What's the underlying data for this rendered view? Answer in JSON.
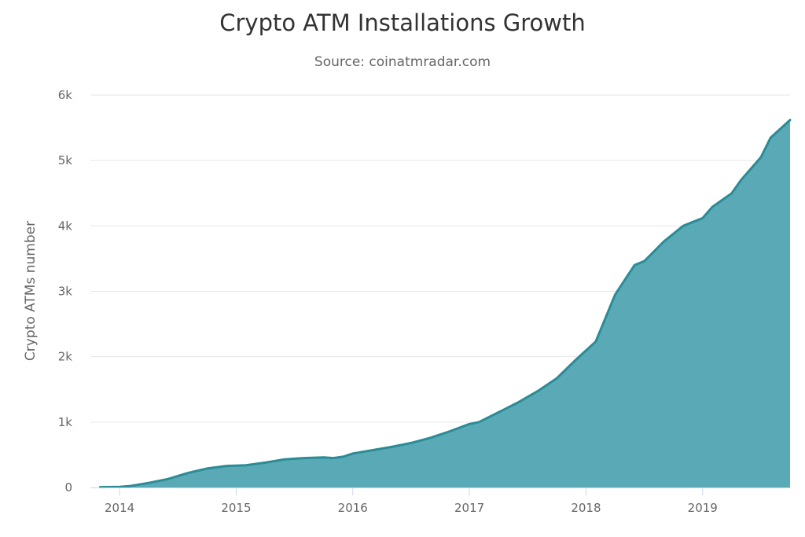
{
  "chart_data": {
    "type": "area",
    "title": "Crypto ATM Installations Growth",
    "subtitle": "Source: coinatmradar.com",
    "xlabel": "",
    "ylabel": "Crypto ATMs number",
    "ylim": [
      0,
      6000
    ],
    "xlim": [
      "2013-10",
      "2019-10"
    ],
    "yticks": [
      {
        "value": 0,
        "label": "0"
      },
      {
        "value": 1000,
        "label": "1k"
      },
      {
        "value": 2000,
        "label": "2k"
      },
      {
        "value": 3000,
        "label": "3k"
      },
      {
        "value": 4000,
        "label": "4k"
      },
      {
        "value": 5000,
        "label": "5k"
      },
      {
        "value": 6000,
        "label": "6k"
      }
    ],
    "xticks": [
      {
        "value": "2014-01",
        "label": "2014"
      },
      {
        "value": "2015-01",
        "label": "2015"
      },
      {
        "value": "2016-01",
        "label": "2016"
      },
      {
        "value": "2017-01",
        "label": "2017"
      },
      {
        "value": "2018-01",
        "label": "2018"
      },
      {
        "value": "2019-01",
        "label": "2019"
      }
    ],
    "grid": true,
    "legend": "none",
    "colors": {
      "fill": "#5aa9b6",
      "line": "#2b8c96",
      "grid": "#e6e6e6",
      "axis": "#ccd6eb"
    },
    "series": [
      {
        "x": [
          "2013-11",
          "2014-01",
          "2014-02",
          "2014-04",
          "2014-06",
          "2014-08",
          "2014-10",
          "2014-12",
          "2015-02",
          "2015-04",
          "2015-06",
          "2015-08",
          "2015-10",
          "2015-11",
          "2015-12",
          "2016-01",
          "2016-03",
          "2016-05",
          "2016-07",
          "2016-09",
          "2016-11",
          "2017-01",
          "2017-02",
          "2017-04",
          "2017-06",
          "2017-08",
          "2017-10",
          "2017-12",
          "2018-02",
          "2018-04",
          "2018-06",
          "2018-07",
          "2018-09",
          "2018-11",
          "2019-01",
          "2019-02",
          "2019-04",
          "2019-05",
          "2019-07",
          "2019-08",
          "2019-10"
        ],
        "values": [
          5,
          10,
          20,
          70,
          130,
          220,
          290,
          330,
          340,
          380,
          430,
          450,
          460,
          450,
          470,
          520,
          570,
          620,
          680,
          760,
          860,
          970,
          1000,
          1150,
          1300,
          1470,
          1670,
          1960,
          2230,
          2950,
          3400,
          3460,
          3760,
          4000,
          4120,
          4290,
          4500,
          4710,
          5050,
          5350,
          5620
        ]
      }
    ]
  }
}
